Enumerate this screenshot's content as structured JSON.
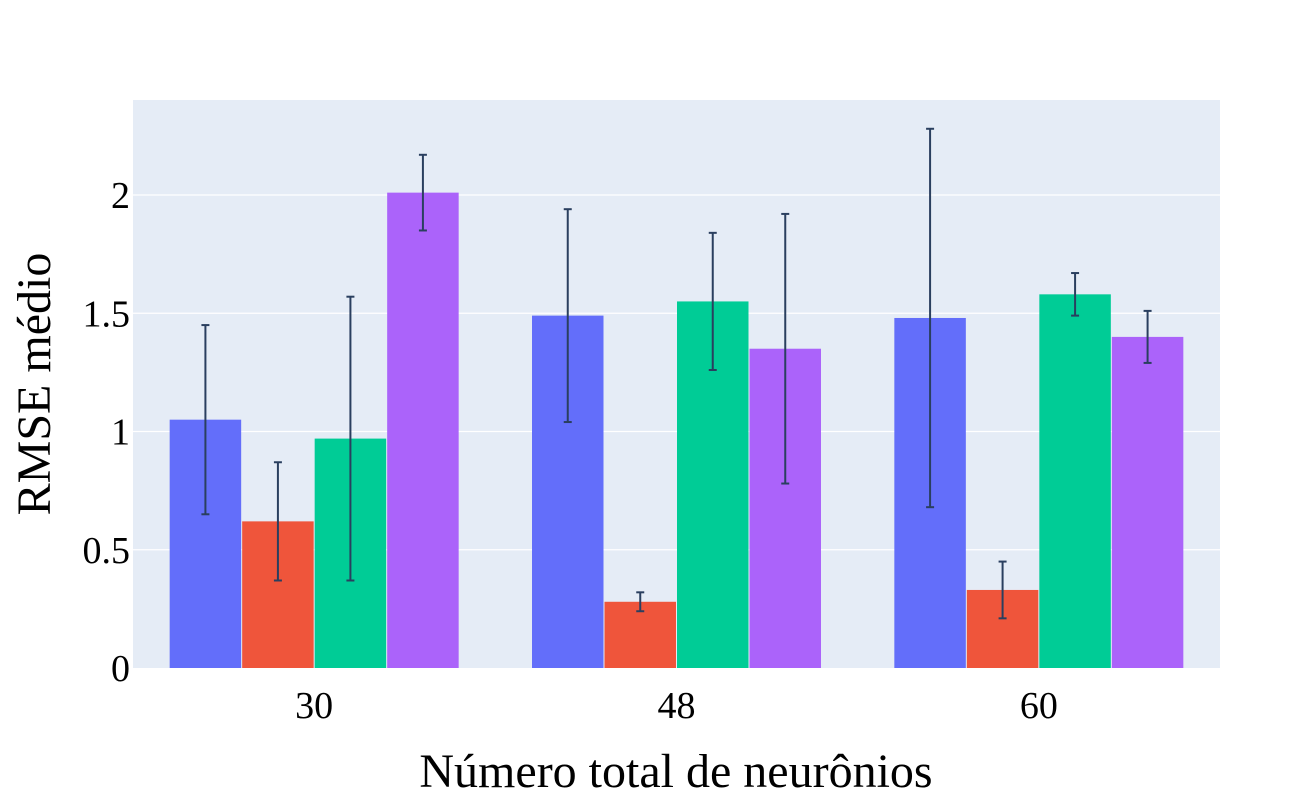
{
  "chart_data": {
    "type": "bar",
    "title": "",
    "xlabel": "Número total de neurônios",
    "ylabel": "RMSE médio",
    "categories": [
      "30",
      "48",
      "60"
    ],
    "ylim": [
      0,
      2.4
    ],
    "yticks": [
      0,
      0.5,
      1,
      1.5,
      2
    ],
    "ytick_labels": [
      "0",
      "0.5",
      "1",
      "1.5",
      "2"
    ],
    "grid": true,
    "legend": "none",
    "background": "#E5ECF6",
    "error_bar_color": "#2A3F5F",
    "series": [
      {
        "color": "#636EFA",
        "values": [
          1.05,
          1.49,
          1.48
        ],
        "errors": [
          0.4,
          0.45,
          0.8
        ]
      },
      {
        "color": "#EF553B",
        "values": [
          0.62,
          0.28,
          0.33
        ],
        "errors": [
          0.25,
          0.04,
          0.12
        ]
      },
      {
        "color": "#00CC96",
        "values": [
          0.97,
          1.55,
          1.58
        ],
        "errors": [
          0.6,
          0.29,
          0.09
        ]
      },
      {
        "color": "#AB63FA",
        "values": [
          2.01,
          1.35,
          1.4
        ],
        "errors": [
          0.16,
          0.57,
          0.11
        ]
      }
    ]
  }
}
